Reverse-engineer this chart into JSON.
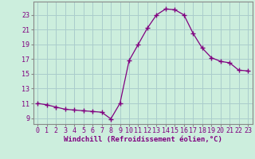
{
  "x": [
    0,
    1,
    2,
    3,
    4,
    5,
    6,
    7,
    8,
    9,
    10,
    11,
    12,
    13,
    14,
    15,
    16,
    17,
    18,
    19,
    20,
    21,
    22,
    23
  ],
  "y": [
    11.0,
    10.8,
    10.5,
    10.2,
    10.1,
    10.0,
    9.9,
    9.8,
    8.9,
    11.0,
    16.8,
    19.0,
    21.2,
    23.0,
    23.8,
    23.7,
    23.0,
    20.5,
    18.5,
    17.2,
    16.7,
    16.5,
    15.5,
    15.4
  ],
  "line_color": "#800080",
  "marker": "+",
  "marker_size": 4,
  "bg_color": "#cceedd",
  "grid_color": "#aacccc",
  "xlabel": "Windchill (Refroidissement éolien,°C)",
  "ylabel_ticks": [
    9,
    11,
    13,
    15,
    17,
    19,
    21,
    23
  ],
  "ylim": [
    8.2,
    24.8
  ],
  "xlim": [
    -0.5,
    23.5
  ],
  "tick_color": "#800080",
  "label_color": "#800080",
  "spine_color": "#888888",
  "font_family": "monospace",
  "tick_fontsize": 6.0,
  "xlabel_fontsize": 6.5
}
